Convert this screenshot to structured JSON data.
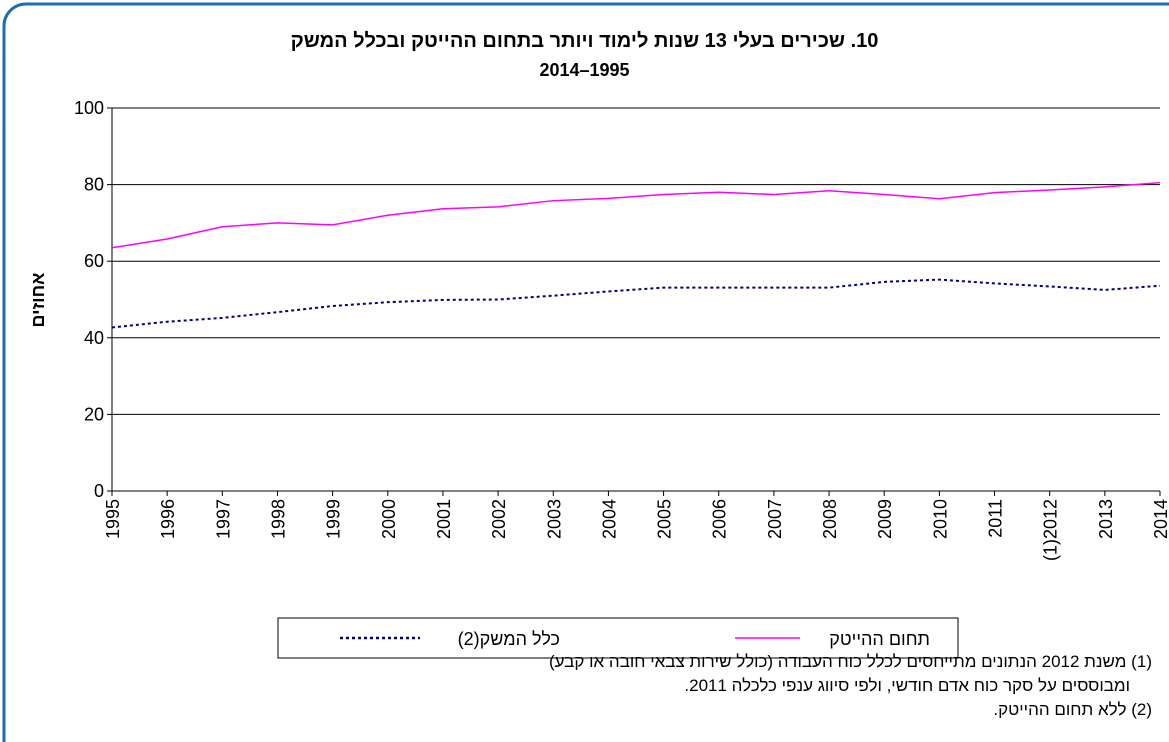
{
  "chart_data": {
    "type": "line",
    "title": "10. שכירים בעלי 13 שנות לימוד ויותר בתחום ההייטק ובכלל המשק",
    "subtitle": "1995–2014",
    "y_label": "אחוזים",
    "categories": [
      "1995",
      "1996",
      "1997",
      "1998",
      "1999",
      "2000",
      "2001",
      "2002",
      "2003",
      "2004",
      "2005",
      "2006",
      "2007",
      "2008",
      "2009",
      "2010",
      "2011",
      "(1)2012",
      "2013",
      "2014"
    ],
    "series": [
      {
        "name": "תחום ההייטק",
        "color": "#ff00ff",
        "style": "solid",
        "values": [
          63.5,
          65.8,
          69,
          70,
          69.5,
          72,
          73.7,
          74.2,
          75.8,
          76.4,
          77.4,
          78,
          77.4,
          78.4,
          77.4,
          76.3,
          77.9,
          78.6,
          79.4,
          80.5
        ]
      },
      {
        "name": "כלל המשק(2)",
        "color": "#000080",
        "style": "dotted",
        "values": [
          42.7,
          44.2,
          45.2,
          46.7,
          48.3,
          49.3,
          49.9,
          50,
          51,
          52.1,
          53.1,
          53.1,
          53.1,
          53.1,
          54.6,
          55.2,
          54.2,
          53.4,
          52.5,
          53.6
        ]
      }
    ],
    "ylim": [
      0,
      100
    ],
    "yticks": [
      0,
      20,
      40,
      60,
      80,
      100
    ],
    "grid": true,
    "legend": "bottom",
    "notes": [
      "(1) משנת 2012 הנתונים מתייחסים לכלל כוח העבודה (כולל שירות צבאי חובה או קבע)",
      "ומבוססים על סקר כוח אדם חודשי, ולפי סיווג ענפי כלכלה 2011.",
      "(2) ללא תחום ההייטק."
    ]
  }
}
